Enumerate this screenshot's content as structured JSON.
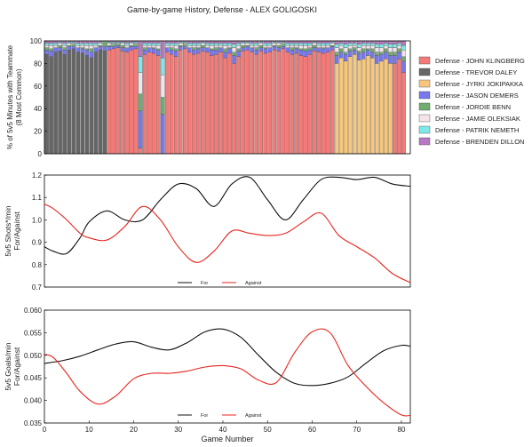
{
  "title": "Game-by-game History, Defense - ALEX GOLIGOSKI",
  "colors": {
    "klingberg": "#f47a78",
    "daley": "#666666",
    "jokipakka": "#f6c77c",
    "demers": "#7777ee",
    "benn": "#6fae6f",
    "oleksiak": "#f2e4ea",
    "nemeth": "#7fe8e8",
    "dillon": "#b877c2",
    "for_line": "#111111",
    "against_line": "#e8251e"
  },
  "chart_data": [
    {
      "type": "bar",
      "stacked": true,
      "ylabel": "% of 5v5 Minutes with Teammate\n(8 Most Common)",
      "xlim": [
        0,
        82
      ],
      "ylim": [
        0,
        100
      ],
      "yticks": [
        0,
        20,
        40,
        60,
        80,
        100
      ],
      "legend_position": "right",
      "series": [
        {
          "name": "Defense - JOHN KLINGBERG",
          "color_key": "klingberg"
        },
        {
          "name": "Defense - TREVOR DALEY",
          "color_key": "daley"
        },
        {
          "name": "Defense - JYRKI JOKIPAKKA",
          "color_key": "jokipakka"
        },
        {
          "name": "Defense - JASON DEMERS",
          "color_key": "demers"
        },
        {
          "name": "Defense - JORDIE BENN",
          "color_key": "benn"
        },
        {
          "name": "Defense - JAMIE OLEKSIAK",
          "color_key": "oleksiak"
        },
        {
          "name": "Defense - PATRIK NEMETH",
          "color_key": "nemeth"
        },
        {
          "name": "Defense - BRENDEN DILLON",
          "color_key": "dillon"
        }
      ],
      "klingberg_approx": [
        0,
        0,
        0,
        0,
        0,
        0,
        0,
        0,
        0,
        0,
        0,
        0,
        0,
        0,
        92,
        93,
        94,
        91,
        90,
        92,
        93,
        5,
        88,
        90,
        89,
        87,
        0,
        90,
        88,
        86,
        92,
        93,
        90,
        88,
        89,
        91,
        90,
        87,
        88,
        90,
        85,
        89,
        80,
        86,
        91,
        92,
        90,
        88,
        91,
        89,
        90,
        92,
        91,
        93,
        90,
        88,
        89,
        87,
        86,
        88,
        91,
        90,
        89,
        90,
        92,
        0,
        0,
        0,
        0,
        0,
        0,
        0,
        0,
        0,
        0,
        0,
        0,
        0,
        80,
        84,
        72
      ],
      "daley_approx": [
        88,
        86,
        90,
        91,
        88,
        92,
        93,
        90,
        89,
        87,
        85,
        90,
        92,
        91,
        0,
        0,
        0,
        0,
        0,
        0,
        0,
        0,
        0,
        0,
        0,
        0,
        0,
        0,
        0,
        0,
        0,
        0,
        0,
        0,
        0,
        0,
        0,
        0,
        0,
        0,
        0,
        0,
        0,
        0,
        0,
        0,
        0,
        0,
        0,
        0,
        0,
        0,
        0,
        0,
        0,
        0,
        0,
        0,
        0,
        0,
        0,
        0,
        0,
        0,
        0,
        0,
        0,
        0,
        0,
        0,
        0,
        0,
        0,
        0,
        0,
        0,
        0,
        0,
        0,
        0,
        0
      ],
      "jokipakka_approx": [
        0,
        0,
        0,
        0,
        0,
        0,
        0,
        0,
        0,
        0,
        0,
        0,
        0,
        0,
        0,
        0,
        0,
        0,
        0,
        0,
        0,
        0,
        0,
        0,
        0,
        0,
        0,
        0,
        0,
        0,
        0,
        0,
        0,
        0,
        0,
        0,
        0,
        0,
        0,
        0,
        0,
        0,
        0,
        0,
        0,
        0,
        0,
        0,
        0,
        0,
        0,
        0,
        0,
        0,
        0,
        0,
        0,
        0,
        0,
        0,
        0,
        0,
        0,
        0,
        0,
        80,
        85,
        82,
        86,
        88,
        83,
        84,
        87,
        85,
        80,
        82,
        84,
        80,
        0,
        0,
        0
      ]
    },
    {
      "type": "line",
      "ylabel": "5v5 Shots*/min\nFor/Against",
      "xlim": [
        0,
        82
      ],
      "ylim": [
        0.7,
        1.2
      ],
      "yticks": [
        0.7,
        0.8,
        0.9,
        1.0,
        1.1,
        1.2
      ],
      "ytick_labels": [
        "0.7",
        "0.8",
        "0.9",
        "1.0",
        "1.1",
        "1.2"
      ],
      "legend_position": "bottom-center",
      "series": [
        {
          "name": "For",
          "color_key": "for_line",
          "x": [
            0,
            2,
            5,
            8,
            10,
            14,
            18,
            22,
            26,
            30,
            34,
            38,
            42,
            46,
            50,
            54,
            58,
            62,
            66,
            70,
            74,
            78,
            82
          ],
          "y": [
            0.88,
            0.86,
            0.85,
            0.92,
            0.99,
            1.04,
            1.0,
            1.0,
            1.09,
            1.16,
            1.14,
            1.06,
            1.16,
            1.19,
            1.09,
            1.0,
            1.09,
            1.18,
            1.19,
            1.18,
            1.19,
            1.16,
            1.15
          ]
        },
        {
          "name": "Against",
          "color_key": "against_line",
          "x": [
            0,
            2,
            5,
            8,
            10,
            14,
            18,
            22,
            26,
            30,
            34,
            38,
            42,
            46,
            50,
            54,
            58,
            62,
            66,
            70,
            74,
            78,
            82
          ],
          "y": [
            1.07,
            1.05,
            1.0,
            0.94,
            0.92,
            0.91,
            0.97,
            1.06,
            1.0,
            0.88,
            0.81,
            0.86,
            0.95,
            0.94,
            0.93,
            0.94,
            0.99,
            1.03,
            0.93,
            0.88,
            0.83,
            0.76,
            0.72
          ]
        }
      ]
    },
    {
      "type": "line",
      "ylabel": "5v5 Goals/min\nFor/Against",
      "xlabel": "Game Number",
      "xlim": [
        0,
        82
      ],
      "ylim": [
        0.035,
        0.06
      ],
      "yticks": [
        0.035,
        0.04,
        0.045,
        0.05,
        0.055,
        0.06
      ],
      "ytick_labels": [
        "0.035",
        "0.040",
        "0.045",
        "0.050",
        "0.055",
        "0.060"
      ],
      "xticks": [
        0,
        10,
        20,
        30,
        40,
        50,
        60,
        70,
        80
      ],
      "legend_position": "bottom-center",
      "series": [
        {
          "name": "For",
          "color_key": "for_line",
          "x": [
            0,
            4,
            8,
            12,
            16,
            20,
            24,
            28,
            32,
            36,
            40,
            44,
            48,
            52,
            56,
            60,
            64,
            68,
            72,
            76,
            80,
            82
          ],
          "y": [
            0.0482,
            0.0488,
            0.0498,
            0.0512,
            0.0525,
            0.053,
            0.0518,
            0.0512,
            0.0528,
            0.0552,
            0.0558,
            0.054,
            0.05,
            0.0462,
            0.0438,
            0.0433,
            0.0438,
            0.0452,
            0.0482,
            0.051,
            0.0522,
            0.052
          ]
        },
        {
          "name": "Against",
          "color_key": "against_line",
          "x": [
            0,
            2,
            5,
            8,
            12,
            16,
            20,
            24,
            28,
            32,
            36,
            40,
            44,
            48,
            52,
            56,
            60,
            64,
            68,
            72,
            76,
            80,
            82
          ],
          "y": [
            0.0502,
            0.0495,
            0.046,
            0.042,
            0.0392,
            0.041,
            0.0448,
            0.046,
            0.046,
            0.0465,
            0.0474,
            0.0477,
            0.047,
            0.0445,
            0.044,
            0.0505,
            0.0552,
            0.055,
            0.0478,
            0.0432,
            0.0395,
            0.0368,
            0.0367
          ]
        }
      ]
    }
  ]
}
